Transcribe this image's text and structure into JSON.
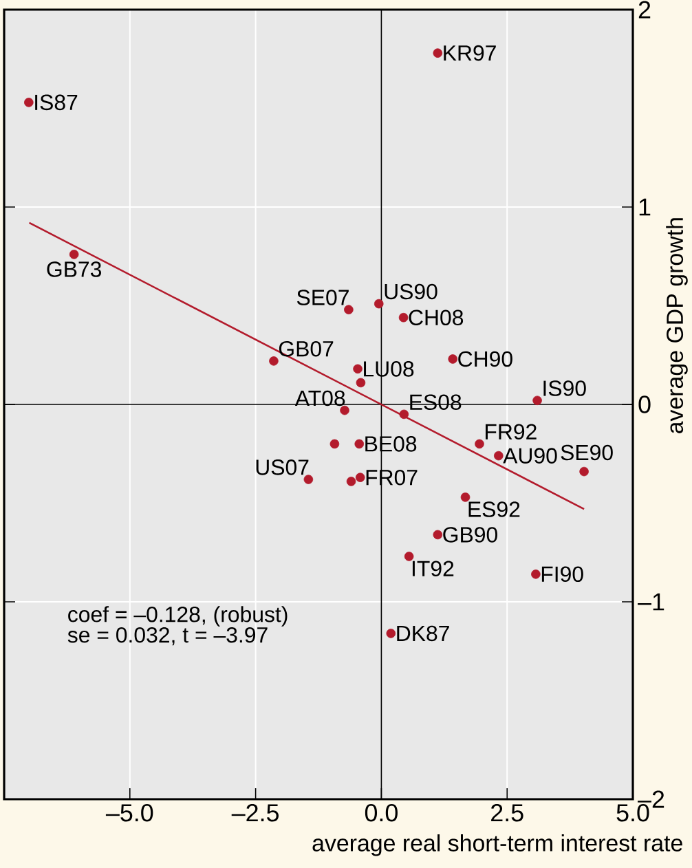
{
  "chart_data": {
    "type": "scatter",
    "xlabel": "average real short-term interest rate",
    "ylabel": "average GDP growth",
    "xlim": [
      -7.5,
      5
    ],
    "ylim": [
      -2,
      2
    ],
    "xticks": [
      {
        "value": -5,
        "label": "–5.0"
      },
      {
        "value": -2.5,
        "label": "–2.5"
      },
      {
        "value": 0,
        "label": "0.0"
      },
      2.5,
      {
        "value": 5,
        "label": "5.0"
      }
    ],
    "yticks": [
      {
        "value": -2,
        "label": "–2"
      },
      {
        "value": -1,
        "label": "–1"
      },
      0,
      1,
      2
    ],
    "grid": true,
    "series": [
      {
        "type": "scatter",
        "marker": "circle",
        "color": "#b31b2c",
        "x": [
          -7.01,
          1.12,
          -6.11,
          -0.65,
          -0.05,
          0.44,
          -2.14,
          -0.47,
          1.42,
          -0.73,
          0.45,
          3.1,
          1.95,
          2.33,
          4.03,
          -0.44,
          -1.45,
          -0.42,
          1.67,
          1.12,
          0.55,
          3.07,
          0.19,
          -0.41,
          -0.93,
          -0.6
        ],
        "values": [
          1.53,
          1.78,
          0.76,
          0.48,
          0.51,
          0.44,
          0.22,
          0.18,
          0.23,
          -0.03,
          -0.05,
          0.02,
          -0.2,
          -0.26,
          -0.34,
          -0.2,
          -0.38,
          -0.37,
          -0.47,
          -0.66,
          -0.77,
          -0.86,
          -1.16,
          0.11,
          -0.2,
          -0.39
        ]
      },
      {
        "type": "line",
        "color": "#b31b2c",
        "x": [
          -7.0,
          4.03
        ],
        "values": [
          0.92,
          -0.53
        ]
      }
    ],
    "annotations": [
      {
        "text": "IS87",
        "x": -7.01,
        "y": 1.53
      },
      {
        "text": "KR97",
        "x": 1.12,
        "y": 1.78
      },
      {
        "text": "GB73",
        "x": -6.11,
        "y": 0.76
      },
      {
        "text": "SE07",
        "x": -0.65,
        "y": 0.48
      },
      {
        "text": "US90",
        "x": -0.05,
        "y": 0.51
      },
      {
        "text": "CH08",
        "x": 0.44,
        "y": 0.44
      },
      {
        "text": "GB07",
        "x": -2.14,
        "y": 0.22
      },
      {
        "text": "LU08",
        "x": -0.47,
        "y": 0.18
      },
      {
        "text": "CH90",
        "x": 1.42,
        "y": 0.23
      },
      {
        "text": "AT08",
        "x": -0.73,
        "y": -0.03
      },
      {
        "text": "ES08",
        "x": 0.45,
        "y": -0.05
      },
      {
        "text": "IS90",
        "x": 3.1,
        "y": 0.02
      },
      {
        "text": "FR92",
        "x": 1.95,
        "y": -0.2
      },
      {
        "text": "AU90",
        "x": 2.33,
        "y": -0.26
      },
      {
        "text": "SE90",
        "x": 4.03,
        "y": -0.34
      },
      {
        "text": "BE08",
        "x": -0.44,
        "y": -0.2
      },
      {
        "text": "US07",
        "x": -1.45,
        "y": -0.38
      },
      {
        "text": "FR07",
        "x": -0.42,
        "y": -0.37
      },
      {
        "text": "ES92",
        "x": 1.67,
        "y": -0.47
      },
      {
        "text": "GB90",
        "x": 1.12,
        "y": -0.66
      },
      {
        "text": "IT92",
        "x": 0.55,
        "y": -0.77
      },
      {
        "text": "FI90",
        "x": 3.07,
        "y": -0.86
      },
      {
        "text": "DK87",
        "x": 0.19,
        "y": -1.16
      },
      "coef = –0.128, (robust)",
      "se = 0.032, t = –3.97"
    ]
  }
}
